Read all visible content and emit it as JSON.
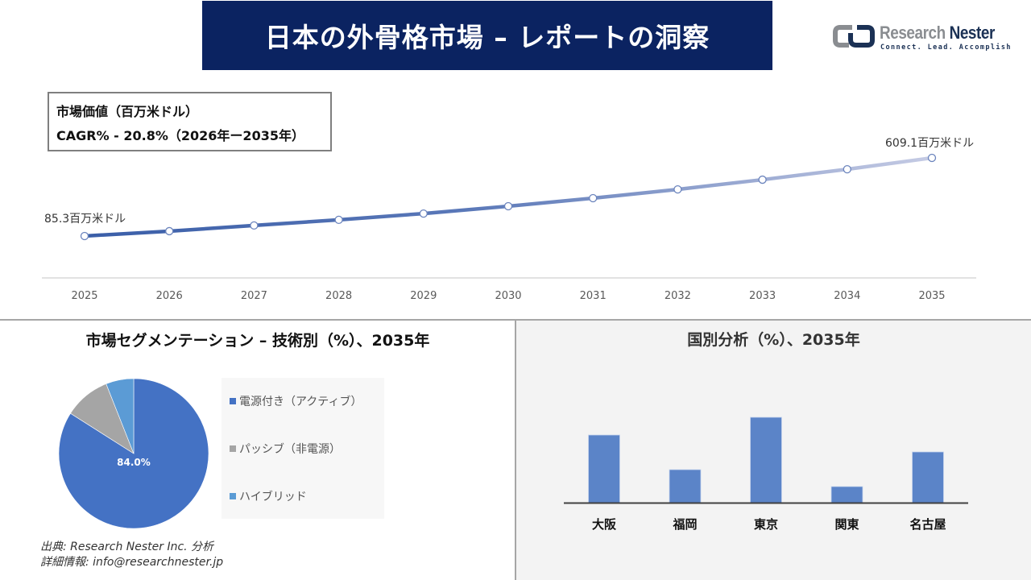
{
  "header": {
    "title": "日本の外骨格市場 – レポートの洞察",
    "logo": {
      "name_part1": "Research",
      "name_part2": "Nester",
      "tagline": "Connect. Lead. Accomplish"
    }
  },
  "info_box": {
    "line1": "市場価値（百万米ドル）",
    "line2": "CAGR% - 20.8%（2026年ー2035年）"
  },
  "line_chart": {
    "start_label": "85.3百万米ドル",
    "end_label": "609.1百万米ドル"
  },
  "segmentation": {
    "title": "市場セグメンテーション – 技術別（%）、2035年",
    "center_label": "84.0%",
    "legend": [
      {
        "label": "電源付き（アクティブ）",
        "color": "#4472c4"
      },
      {
        "label": "パッシブ（非電源）",
        "color": "#a5a5a5"
      },
      {
        "label": "ハイブリッド",
        "color": "#5b9bd5"
      }
    ]
  },
  "geography": {
    "title": "国別分析（%）、2035年"
  },
  "footer": {
    "source": "出典: Research Nester Inc. 分析",
    "contact": "詳細情報: info@researchnester.jp"
  },
  "colors": {
    "banner": "#0b2361",
    "line_start": "#3a5ea8",
    "line_end": "#c5cbe4",
    "bar": "#5b84c8",
    "pie_active": "#4472c4",
    "pie_passive": "#a5a5a5",
    "pie_hybrid": "#5b9bd5"
  },
  "chart_data": [
    {
      "type": "line",
      "title": "市場価値（百万米ドル）",
      "subtitle": "CAGR% - 20.8%（2026年ー2035年）",
      "x": [
        2025,
        2026,
        2027,
        2028,
        2029,
        2030,
        2031,
        2032,
        2033,
        2034,
        2035
      ],
      "series": [
        {
          "name": "市場価値（百万米ドル）",
          "values": [
            85.3,
            118,
            156,
            194,
            236,
            285,
            339,
            398,
            463,
            533,
            609.1
          ]
        }
      ],
      "annotations": [
        {
          "x": 2025,
          "text": "85.3百万米ドル"
        },
        {
          "x": 2035,
          "text": "609.1百万米ドル"
        }
      ],
      "xlabel": "",
      "ylabel": "",
      "grid": false,
      "legend": "none"
    },
    {
      "type": "pie",
      "title": "市場セグメンテーション – 技術別（%）、2035年",
      "categories": [
        "電源付き（アクティブ）",
        "パッシブ（非電源）",
        "ハイブリッド"
      ],
      "values": [
        84.0,
        10.0,
        6.0
      ],
      "data_labels": [
        "84.0%"
      ],
      "legend": "right"
    },
    {
      "type": "bar",
      "title": "国別分析（%）、2035年",
      "categories": [
        "大阪",
        "福岡",
        "東京",
        "関東",
        "名古屋"
      ],
      "values": [
        84,
        41,
        106,
        20,
        63
      ],
      "value_note": "relative bar heights (no axis shown)",
      "xlabel": "",
      "ylabel": "",
      "grid": false,
      "legend": "none"
    }
  ]
}
